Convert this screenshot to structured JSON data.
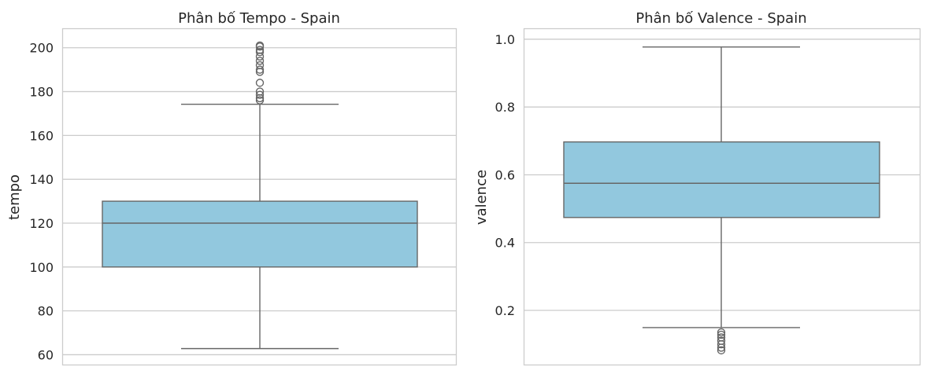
{
  "colors": {
    "box_fill": "#92c8de",
    "line": "#666666",
    "grid": "#cccccc",
    "spine": "#cccccc",
    "text": "#262626"
  },
  "chart_data": [
    {
      "type": "box",
      "title": "Phân bố Tempo - Spain",
      "xlabel": "",
      "ylabel": "tempo",
      "ylim": [
        55.5,
        208.5
      ],
      "yticks": [
        60,
        80,
        100,
        120,
        140,
        160,
        180,
        200
      ],
      "ytick_labels": [
        "60",
        "80",
        "100",
        "120",
        "140",
        "160",
        "180",
        "200"
      ],
      "grid": true,
      "box": {
        "whisker_low": 62.8,
        "q1": 100,
        "median": 120,
        "q3": 130,
        "whisker_high": 174.2
      },
      "outliers": [
        176.0,
        177.0,
        178.5,
        180.0,
        184.0,
        189.0,
        190.0,
        192.0,
        194.0,
        196.0,
        198.0,
        199.0,
        200.5,
        201.0
      ]
    },
    {
      "type": "box",
      "title": "Phân bố Valence - Spain",
      "xlabel": "",
      "ylabel": "valence",
      "ylim": [
        0.04,
        1.03
      ],
      "yticks": [
        0.2,
        0.4,
        0.6,
        0.8,
        1.0
      ],
      "ytick_labels": [
        "0.2",
        "0.4",
        "0.6",
        "0.8",
        "1.0"
      ],
      "grid": true,
      "box": {
        "whisker_low": 0.149,
        "q1": 0.474,
        "median": 0.575,
        "q3": 0.697,
        "whisker_high": 0.977
      },
      "outliers": [
        0.082,
        0.09,
        0.1,
        0.11,
        0.12,
        0.128,
        0.135
      ]
    }
  ]
}
